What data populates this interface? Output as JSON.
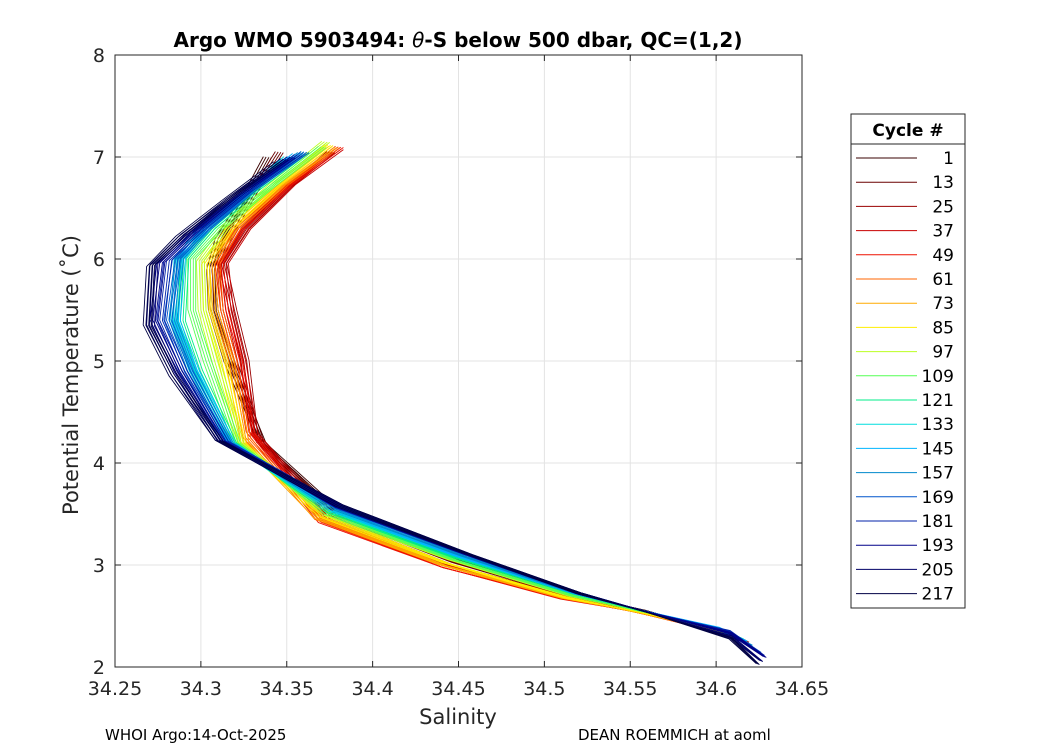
{
  "chart_data": {
    "type": "line",
    "title_prefix": "Argo WMO 5903494: ",
    "title_theta": "θ",
    "title_suffix": "-S below 500 dbar,  QC=(1,2)",
    "xlabel": "Salinity",
    "ylabel": "Potential Temperature (˚C)",
    "xlim": [
      34.25,
      34.65
    ],
    "ylim": [
      2,
      8
    ],
    "xticks": [
      "34.25",
      "34.3",
      "34.35",
      "34.4",
      "34.45",
      "34.5",
      "34.55",
      "34.6",
      "34.65"
    ],
    "yticks": [
      "2",
      "3",
      "4",
      "5",
      "6",
      "7",
      "8"
    ],
    "grid": true,
    "legend": {
      "title": "Cycle #",
      "position": "right",
      "entries": [
        {
          "label": "1",
          "color": "#3a0000"
        },
        {
          "label": "13",
          "color": "#6a0000"
        },
        {
          "label": "25",
          "color": "#9a0000"
        },
        {
          "label": "37",
          "color": "#c80000"
        },
        {
          "label": "49",
          "color": "#ee1100"
        },
        {
          "label": "61",
          "color": "#ff6600"
        },
        {
          "label": "73",
          "color": "#ffaa00"
        },
        {
          "label": "85",
          "color": "#ffee00"
        },
        {
          "label": "97",
          "color": "#bbff22"
        },
        {
          "label": "109",
          "color": "#55ff55"
        },
        {
          "label": "121",
          "color": "#00ee88"
        },
        {
          "label": "133",
          "color": "#00dddd"
        },
        {
          "label": "145",
          "color": "#00b4ff"
        },
        {
          "label": "157",
          "color": "#0088cc"
        },
        {
          "label": "169",
          "color": "#0055cc"
        },
        {
          "label": "181",
          "color": "#0022aa"
        },
        {
          "label": "193",
          "color": "#000088"
        },
        {
          "label": "205",
          "color": "#000066"
        },
        {
          "label": "217",
          "color": "#000044"
        }
      ]
    },
    "series": [
      {
        "name": "1",
        "color": "#3a0000",
        "x": [
          34.338,
          34.325,
          34.31,
          34.305,
          34.306,
          34.315,
          34.335,
          34.38,
          34.45,
          34.52,
          34.56,
          34.6,
          34.615
        ],
        "y": [
          7.0,
          6.6,
          6.2,
          5.9,
          5.5,
          5.0,
          4.2,
          3.5,
          3.05,
          2.7,
          2.55,
          2.35,
          2.25
        ]
      },
      {
        "name": "13",
        "color": "#6a0000",
        "x": [
          34.345,
          34.33,
          34.315,
          34.308,
          34.31,
          34.318,
          34.334,
          34.378,
          34.448,
          34.518,
          34.555,
          34.6,
          34.617
        ],
        "y": [
          7.05,
          6.65,
          6.22,
          5.9,
          5.5,
          5.0,
          4.2,
          3.48,
          3.02,
          2.68,
          2.55,
          2.35,
          2.26
        ]
      },
      {
        "name": "25",
        "color": "#9a0000",
        "x": [
          34.375,
          34.35,
          34.325,
          34.312,
          34.318,
          34.325,
          34.33,
          34.375,
          34.445,
          34.515,
          34.555,
          34.6,
          34.618
        ],
        "y": [
          7.05,
          6.7,
          6.3,
          5.95,
          5.5,
          5.0,
          4.3,
          3.45,
          3.0,
          2.68,
          2.55,
          2.35,
          2.25
        ]
      },
      {
        "name": "37",
        "color": "#c80000",
        "x": [
          34.38,
          34.352,
          34.326,
          34.313,
          34.316,
          34.323,
          34.33,
          34.373,
          34.443,
          34.513,
          34.553,
          34.6,
          34.616
        ],
        "y": [
          7.08,
          6.72,
          6.3,
          5.95,
          5.5,
          5.0,
          4.3,
          3.43,
          3.0,
          2.68,
          2.56,
          2.35,
          2.27
        ]
      },
      {
        "name": "49",
        "color": "#ee1100",
        "x": [
          34.38,
          34.35,
          34.322,
          34.31,
          34.313,
          34.321,
          34.328,
          34.37,
          34.44,
          34.51,
          34.55,
          34.598,
          34.617
        ],
        "y": [
          7.1,
          6.72,
          6.3,
          5.95,
          5.5,
          5.0,
          4.3,
          3.42,
          2.98,
          2.67,
          2.55,
          2.36,
          2.25
        ]
      },
      {
        "name": "61",
        "color": "#ff6600",
        "x": [
          34.378,
          34.348,
          34.32,
          34.308,
          34.31,
          34.318,
          34.326,
          34.368,
          34.44,
          34.51,
          34.55,
          34.598,
          34.615
        ],
        "y": [
          7.1,
          6.72,
          6.3,
          5.95,
          5.5,
          5.0,
          4.25,
          3.45,
          3.0,
          2.68,
          2.55,
          2.36,
          2.26
        ]
      },
      {
        "name": "73",
        "color": "#ffaa00",
        "x": [
          34.376,
          34.346,
          34.318,
          34.305,
          34.307,
          34.316,
          34.325,
          34.368,
          34.44,
          34.51,
          34.55,
          34.598,
          34.612
        ],
        "y": [
          7.1,
          6.72,
          6.3,
          5.95,
          5.5,
          5.0,
          4.2,
          3.46,
          3.0,
          2.68,
          2.55,
          2.37,
          2.28
        ]
      },
      {
        "name": "85",
        "color": "#ffee00",
        "x": [
          34.374,
          34.344,
          34.316,
          34.302,
          34.303,
          34.312,
          34.323,
          34.37,
          34.442,
          34.512,
          34.552,
          34.598,
          34.612
        ],
        "y": [
          7.12,
          6.72,
          6.3,
          5.95,
          5.5,
          5.0,
          4.2,
          3.48,
          3.02,
          2.68,
          2.55,
          2.37,
          2.28
        ]
      },
      {
        "name": "97",
        "color": "#bbff22",
        "x": [
          34.372,
          34.342,
          34.314,
          34.299,
          34.3,
          34.308,
          34.322,
          34.372,
          34.445,
          34.514,
          34.552,
          34.598,
          34.61
        ],
        "y": [
          7.15,
          6.75,
          6.32,
          5.98,
          5.5,
          5.0,
          4.2,
          3.5,
          3.05,
          2.7,
          2.56,
          2.38,
          2.3
        ]
      },
      {
        "name": "109",
        "color": "#55ff55",
        "x": [
          34.37,
          34.34,
          34.31,
          34.294,
          34.294,
          34.303,
          34.32,
          34.374,
          34.447,
          34.516,
          34.553,
          34.6,
          34.612
        ],
        "y": [
          7.1,
          6.7,
          6.3,
          6.0,
          5.5,
          5.0,
          4.2,
          3.5,
          3.05,
          2.7,
          2.56,
          2.38,
          2.3
        ]
      },
      {
        "name": "121",
        "color": "#00ee88",
        "x": [
          34.36,
          34.332,
          34.305,
          34.29,
          34.288,
          34.298,
          34.318,
          34.375,
          34.448,
          34.517,
          34.554,
          34.6,
          34.615
        ],
        "y": [
          7.05,
          6.68,
          6.3,
          6.0,
          5.4,
          4.9,
          4.2,
          3.52,
          3.07,
          2.72,
          2.56,
          2.38,
          2.28
        ]
      },
      {
        "name": "133",
        "color": "#00dddd",
        "x": [
          34.35,
          34.325,
          34.3,
          34.286,
          34.284,
          34.295,
          34.317,
          34.376,
          34.45,
          34.518,
          34.555,
          34.6,
          34.615
        ],
        "y": [
          7.0,
          6.65,
          6.3,
          6.0,
          5.4,
          4.9,
          4.2,
          3.53,
          3.08,
          2.72,
          2.56,
          2.38,
          2.27
        ]
      },
      {
        "name": "145",
        "color": "#00b4ff",
        "x": [
          34.355,
          34.328,
          34.302,
          34.288,
          34.285,
          34.296,
          34.317,
          34.377,
          34.45,
          34.518,
          34.556,
          34.601,
          34.617
        ],
        "y": [
          7.03,
          6.67,
          6.3,
          6.0,
          5.4,
          4.9,
          4.2,
          3.54,
          3.08,
          2.72,
          2.56,
          2.38,
          2.26
        ]
      },
      {
        "name": "157",
        "color": "#0088cc",
        "x": [
          34.358,
          34.33,
          34.303,
          34.287,
          34.283,
          34.294,
          34.316,
          34.378,
          34.452,
          34.519,
          34.557,
          34.603,
          34.62
        ],
        "y": [
          7.04,
          6.68,
          6.3,
          6.0,
          5.4,
          4.9,
          4.2,
          3.55,
          3.09,
          2.72,
          2.55,
          2.36,
          2.22
        ]
      },
      {
        "name": "169",
        "color": "#0055cc",
        "x": [
          34.36,
          34.33,
          34.302,
          34.285,
          34.28,
          34.292,
          34.315,
          34.38,
          34.455,
          34.52,
          34.558,
          34.606,
          34.625
        ],
        "y": [
          7.05,
          6.68,
          6.3,
          6.0,
          5.4,
          4.9,
          4.2,
          3.56,
          3.1,
          2.72,
          2.55,
          2.35,
          2.15
        ]
      },
      {
        "name": "181",
        "color": "#0022aa",
        "x": [
          34.356,
          34.326,
          34.298,
          34.28,
          34.276,
          34.289,
          34.313,
          34.38,
          34.455,
          34.52,
          34.558,
          34.607,
          34.627
        ],
        "y": [
          7.02,
          6.65,
          6.28,
          5.98,
          5.4,
          4.9,
          4.22,
          3.57,
          3.1,
          2.72,
          2.55,
          2.35,
          2.12
        ]
      },
      {
        "name": "193",
        "color": "#000088",
        "x": [
          34.352,
          34.322,
          34.294,
          34.276,
          34.272,
          34.286,
          34.311,
          34.38,
          34.455,
          34.52,
          34.558,
          34.608,
          34.628
        ],
        "y": [
          7.0,
          6.63,
          6.26,
          5.96,
          5.4,
          4.9,
          4.22,
          3.57,
          3.1,
          2.72,
          2.55,
          2.33,
          2.1
        ]
      },
      {
        "name": "205",
        "color": "#000066",
        "x": [
          34.348,
          34.318,
          34.29,
          34.272,
          34.27,
          34.284,
          34.31,
          34.38,
          34.455,
          34.52,
          34.557,
          34.608,
          34.626
        ],
        "y": [
          6.98,
          6.6,
          6.24,
          5.95,
          5.35,
          4.88,
          4.22,
          3.58,
          3.11,
          2.72,
          2.55,
          2.3,
          2.06
        ]
      },
      {
        "name": "217",
        "color": "#000044",
        "x": [
          34.344,
          34.314,
          34.287,
          34.27,
          34.268,
          34.283,
          34.31,
          34.38,
          34.455,
          34.52,
          34.557,
          34.608,
          34.624
        ],
        "y": [
          6.95,
          6.58,
          6.22,
          5.93,
          5.35,
          4.86,
          4.22,
          3.58,
          3.11,
          2.72,
          2.55,
          2.28,
          2.03
        ]
      }
    ]
  },
  "footer": {
    "left": "WHOI Argo:14-Oct-2025",
    "right": "DEAN ROEMMICH at aoml"
  }
}
